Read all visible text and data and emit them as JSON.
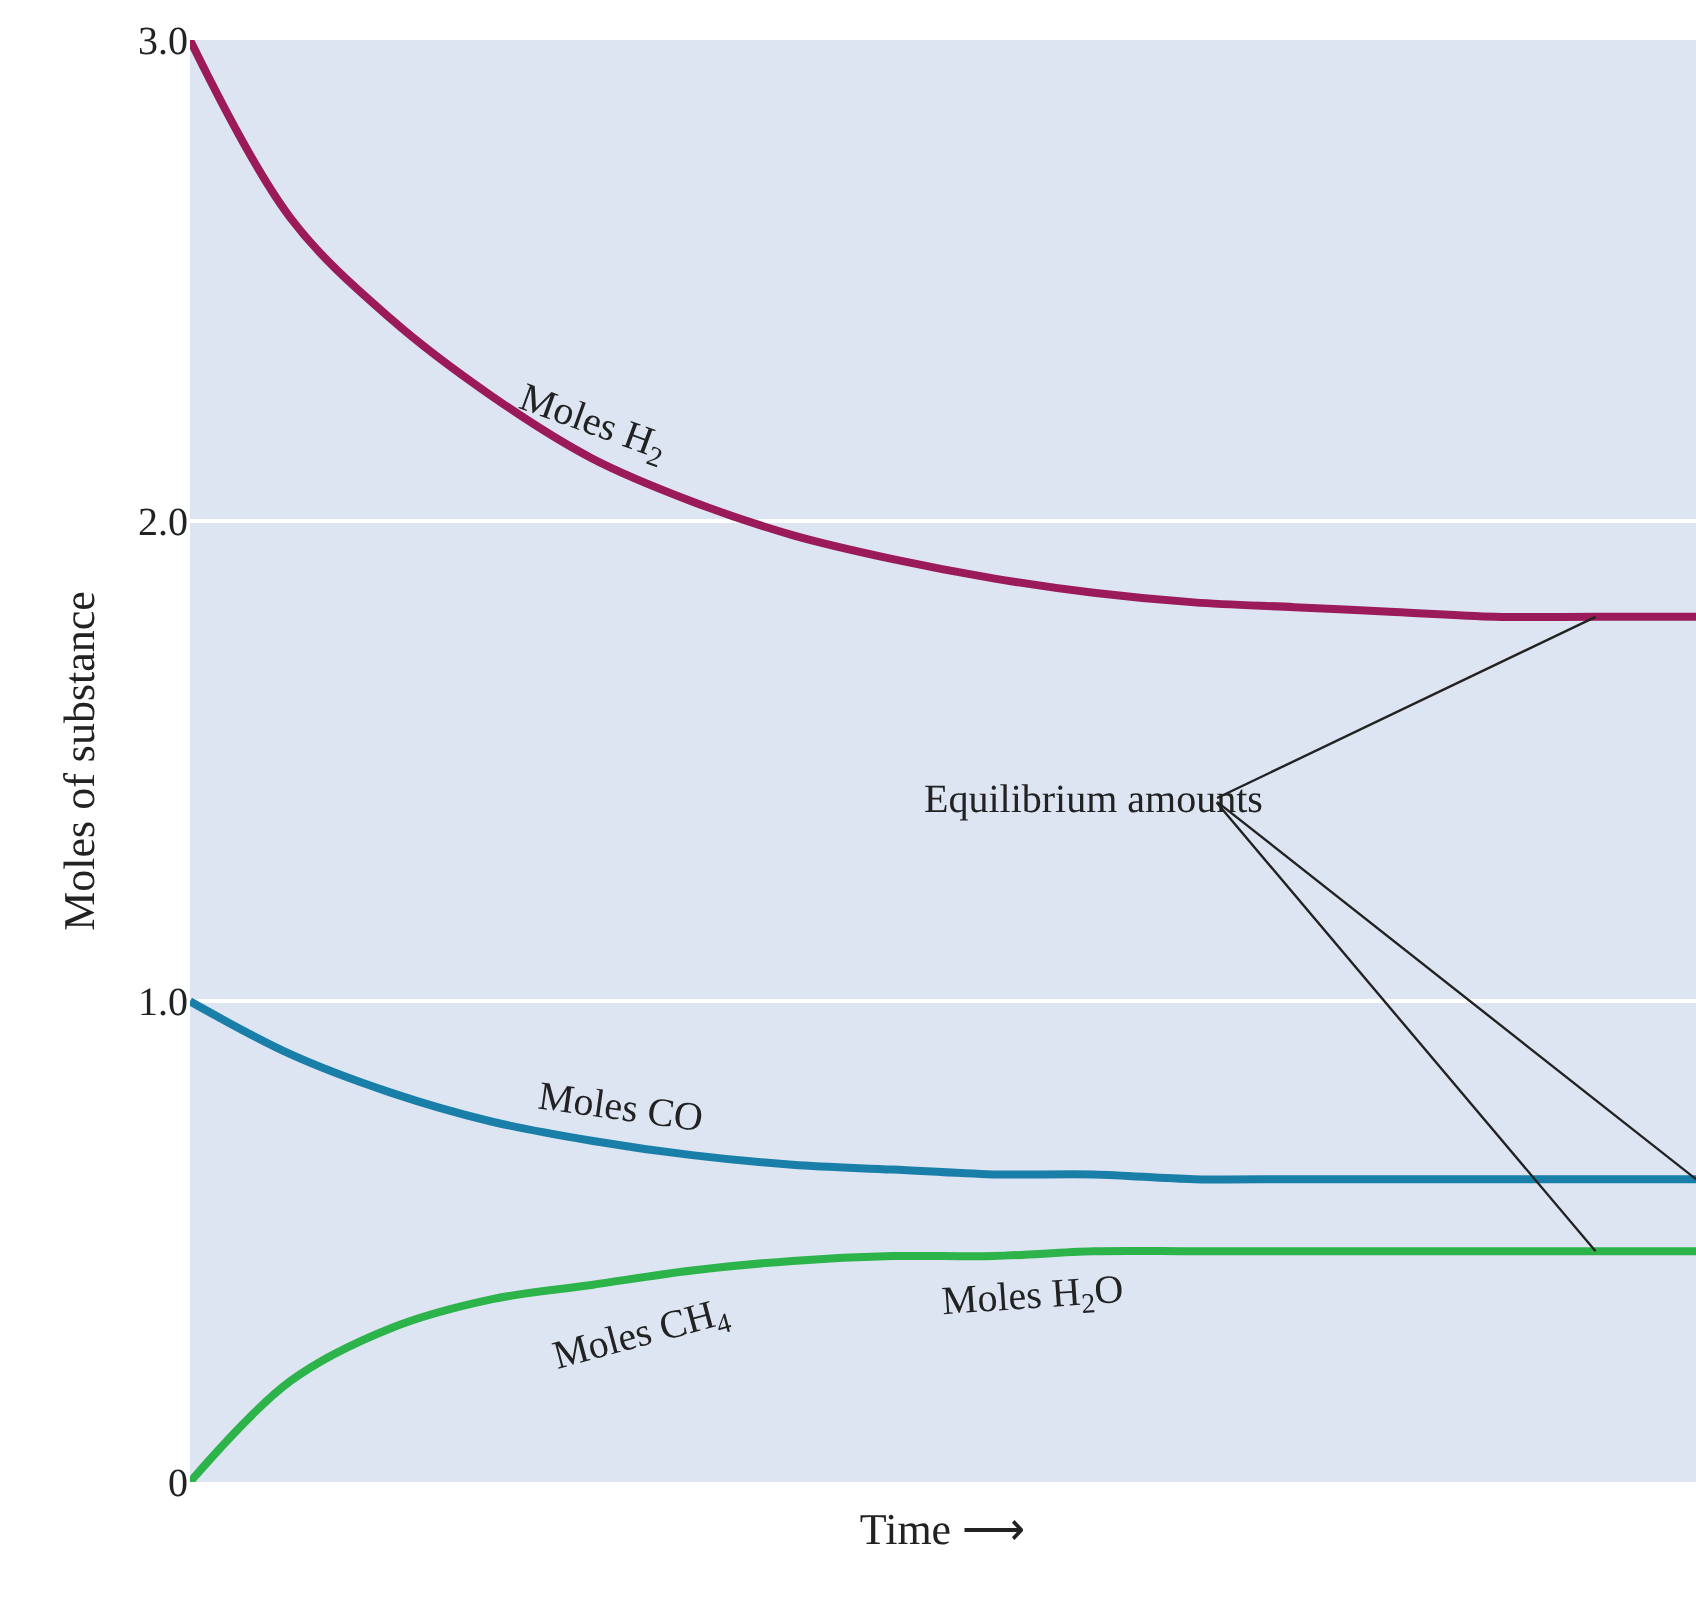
{
  "chart_data": {
    "type": "line",
    "ylabel": "Moles of substance",
    "xlabel": "Time ⟶",
    "categories": [
      null,
      null,
      null,
      null,
      null,
      null,
      null,
      null,
      null,
      null,
      null,
      null,
      null,
      null,
      null,
      null
    ],
    "series": [
      {
        "name": "Moles H$_{2}$",
        "color": "#9b1b5a",
        "values": [
          3.0,
          2.63,
          2.42,
          2.26,
          2.13,
          2.04,
          1.97,
          1.92,
          1.88,
          1.85,
          1.83,
          1.82,
          1.81,
          1.8,
          1.8,
          1.8
        ]
      },
      {
        "name": "Moles CO",
        "color": "#1a7fa8",
        "values": [
          1.0,
          0.89,
          0.81,
          0.75,
          0.71,
          0.68,
          0.66,
          0.65,
          0.64,
          0.64,
          0.63,
          0.63,
          0.63,
          0.63,
          0.63,
          0.63
        ]
      },
      {
        "name": "Moles CH$_{4}$",
        "color": "#2cb34a",
        "values": [
          0,
          0.21,
          0.32,
          0.38,
          0.41,
          0.44,
          0.46,
          0.47,
          0.47,
          0.48,
          0.48,
          0.48,
          0.48,
          0.48,
          0.48,
          0.48
        ]
      }
    ],
    "annotations": [
      "Moles H$_{2}$O",
      "Equilibrium amounts"
    ],
    "ylim": [
      0,
      3.0
    ],
    "yticks": [
      0,
      {
        "value": 1,
        "label": "1.0"
      },
      {
        "value": 2,
        "label": "2.0"
      },
      {
        "value": 3,
        "label": "3.0"
      }
    ],
    "grid": "y",
    "legend": false,
    "marker": "none",
    "line_style": "solid",
    "tick_labels": "y"
  }
}
